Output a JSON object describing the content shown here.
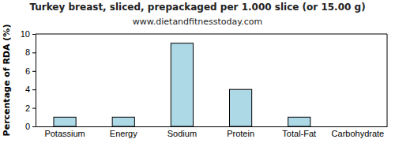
{
  "chart_data": {
    "type": "bar",
    "title": "Turkey breast, sliced, prepackaged per 1.000 slice (or 15.00 g)",
    "subtitle": "www.dietandfitnesstoday.com",
    "y_label": "Percentage of RDA (%)",
    "categories": [
      "Potassium",
      "Energy",
      "Sodium",
      "Protein",
      "Total-Fat",
      "Carbohydrate"
    ],
    "values": [
      1,
      1,
      9,
      4,
      1,
      0
    ],
    "color": "#add8e6",
    "ylim": [
      0,
      10
    ],
    "yticks": [
      0,
      2,
      4,
      6,
      8,
      10
    ],
    "grid": false
  }
}
